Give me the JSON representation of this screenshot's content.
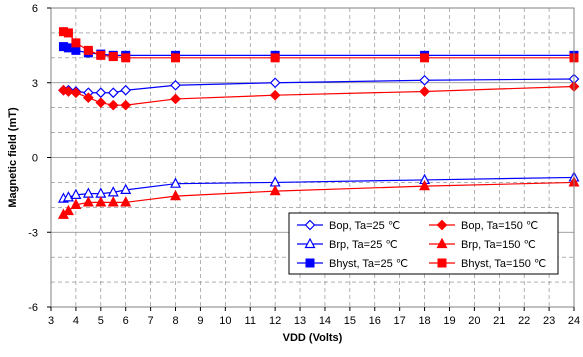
{
  "chart_data": {
    "type": "line",
    "title": "",
    "xlabel": "VDD (Volts)",
    "ylabel": "Magnetic field (mT)",
    "xlim": [
      3,
      24
    ],
    "ylim": [
      -6,
      6
    ],
    "xticks": [
      3,
      4,
      5,
      6,
      7,
      8,
      9,
      10,
      11,
      12,
      13,
      14,
      15,
      16,
      17,
      18,
      19,
      20,
      21,
      22,
      23,
      24
    ],
    "yticks": [
      -6,
      -3,
      0,
      3,
      6
    ],
    "grid": {
      "x_major": true,
      "y_major": true,
      "y_minor": true,
      "minor_style": "dashed"
    },
    "legend_position": "lower-right",
    "series": [
      {
        "name": "Bop, Ta=25 ℃",
        "color": "#0000ff",
        "marker": "diamond-open",
        "x": [
          3.5,
          3.7,
          4,
          4.5,
          5,
          5.5,
          6,
          8,
          12,
          18,
          24
        ],
        "y": [
          2.7,
          2.7,
          2.65,
          2.6,
          2.6,
          2.6,
          2.7,
          2.9,
          3.0,
          3.1,
          3.15
        ]
      },
      {
        "name": "Bop, Ta=150 ℃",
        "color": "#ff0000",
        "marker": "diamond-filled",
        "x": [
          3.5,
          3.7,
          4,
          4.5,
          5,
          5.5,
          6,
          8,
          12,
          18,
          24
        ],
        "y": [
          2.7,
          2.65,
          2.6,
          2.4,
          2.2,
          2.1,
          2.1,
          2.35,
          2.5,
          2.65,
          2.85
        ]
      },
      {
        "name": "Brp, Ta=25 ℃",
        "color": "#0000ff",
        "marker": "triangle-open",
        "x": [
          3.5,
          3.7,
          4,
          4.5,
          5,
          5.5,
          6,
          8,
          12,
          18,
          24
        ],
        "y": [
          -1.65,
          -1.6,
          -1.5,
          -1.45,
          -1.45,
          -1.4,
          -1.3,
          -1.05,
          -1.0,
          -0.9,
          -0.8
        ]
      },
      {
        "name": "Brp, Ta=150 ℃",
        "color": "#ff0000",
        "marker": "triangle-filled",
        "x": [
          3.5,
          3.7,
          4,
          4.5,
          5,
          5.5,
          6,
          8,
          12,
          18,
          24
        ],
        "y": [
          -2.3,
          -2.15,
          -1.9,
          -1.8,
          -1.8,
          -1.8,
          -1.8,
          -1.55,
          -1.35,
          -1.15,
          -1.0
        ]
      },
      {
        "name": "Bhyst, Ta=25 ℃",
        "color": "#0000ff",
        "marker": "square-filled",
        "x": [
          3.5,
          3.7,
          4,
          4.5,
          5,
          5.5,
          6,
          8,
          12,
          18,
          24
        ],
        "y": [
          4.45,
          4.4,
          4.3,
          4.2,
          4.15,
          4.1,
          4.1,
          4.1,
          4.1,
          4.1,
          4.1
        ]
      },
      {
        "name": "Bhyst, Ta=150 ℃",
        "color": "#ff0000",
        "marker": "square-filled",
        "x": [
          3.5,
          3.7,
          4,
          4.5,
          5,
          5.5,
          6,
          8,
          12,
          18,
          24
        ],
        "y": [
          5.05,
          5.0,
          4.6,
          4.3,
          4.1,
          4.05,
          4.0,
          4.0,
          4.0,
          4.0,
          4.0
        ]
      }
    ]
  }
}
